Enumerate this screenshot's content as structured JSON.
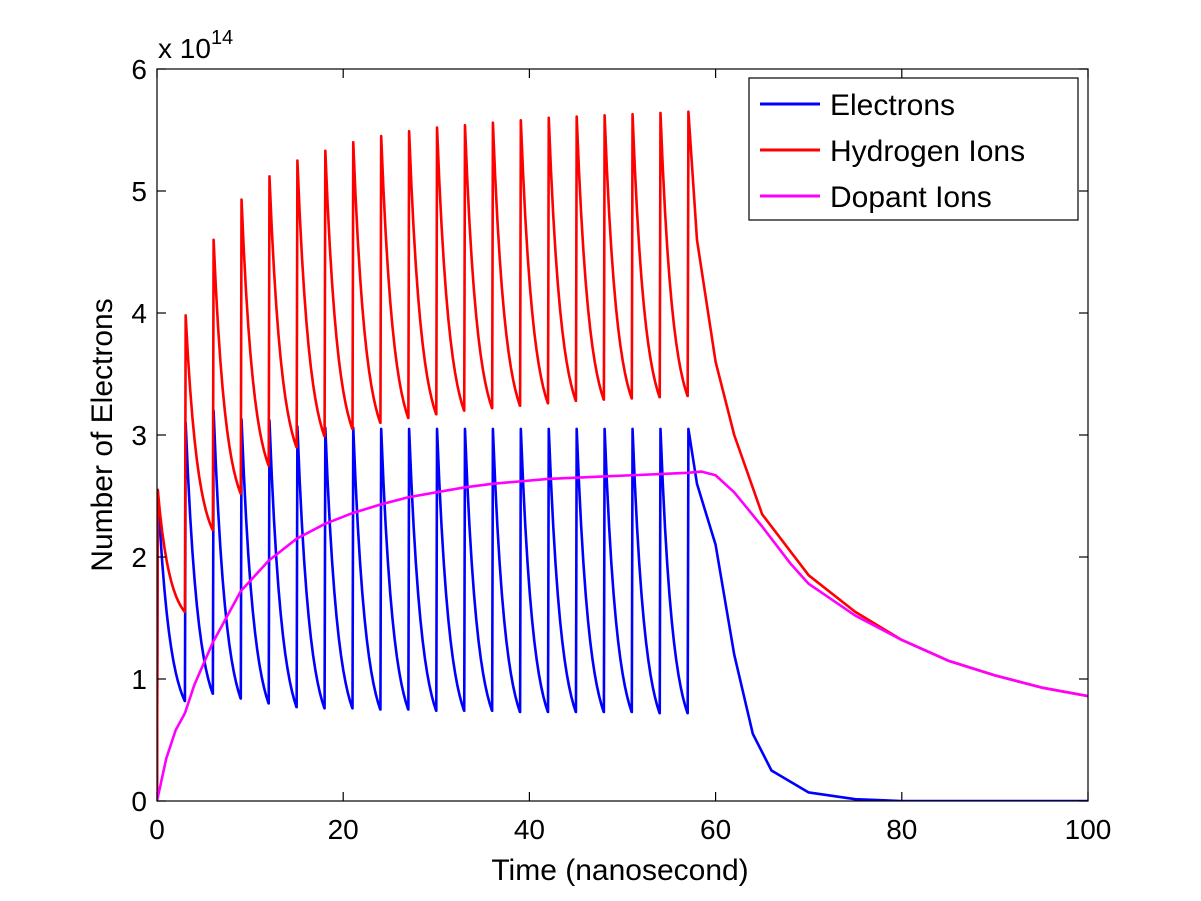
{
  "chart_data": {
    "type": "line",
    "xlabel": "Time (nanosecond)",
    "ylabel": "Number of Electrons",
    "xlim": [
      0,
      100
    ],
    "ylim": [
      0,
      6
    ],
    "y_multiplier": {
      "base": "x 10",
      "exponent": "14"
    },
    "xticks": [
      "0",
      "20",
      "40",
      "60",
      "80",
      "100"
    ],
    "yticks": [
      "0",
      "1",
      "2",
      "3",
      "4",
      "5",
      "6"
    ],
    "grid": false,
    "legend_position": "top-right",
    "pulses": {
      "period_ns": 3.0,
      "count": 20,
      "end_ns": 58
    },
    "series": [
      {
        "name": "Electrons",
        "color": "#0000ff",
        "peaks": [
          2.55,
          3.1,
          3.2,
          3.13,
          3.12,
          3.07,
          3.06,
          3.06,
          3.05,
          3.05,
          3.05,
          3.05,
          3.05,
          3.05,
          3.05,
          3.05,
          3.05,
          3.05,
          3.05,
          3.05
        ],
        "troughs": [
          0.82,
          0.88,
          0.84,
          0.8,
          0.77,
          0.76,
          0.76,
          0.75,
          0.75,
          0.74,
          0.74,
          0.74,
          0.73,
          0.73,
          0.73,
          0.73,
          0.73,
          0.72,
          0.72
        ],
        "tail": [
          [
            58,
            2.6
          ],
          [
            60,
            2.1
          ],
          [
            62,
            1.2
          ],
          [
            64,
            0.55
          ],
          [
            66,
            0.25
          ],
          [
            70,
            0.07
          ],
          [
            75,
            0.015
          ],
          [
            80,
            0.0
          ],
          [
            100,
            0.0
          ]
        ]
      },
      {
        "name": "Hydrogen Ions",
        "color": "#ff0000",
        "peaks": [
          2.55,
          3.98,
          4.6,
          4.93,
          5.12,
          5.25,
          5.33,
          5.4,
          5.45,
          5.49,
          5.52,
          5.54,
          5.56,
          5.58,
          5.6,
          5.61,
          5.62,
          5.63,
          5.64,
          5.65
        ],
        "troughs": [
          1.55,
          2.22,
          2.52,
          2.75,
          2.9,
          2.99,
          3.05,
          3.1,
          3.14,
          3.17,
          3.2,
          3.22,
          3.24,
          3.26,
          3.28,
          3.29,
          3.3,
          3.31,
          3.32
        ],
        "tail": [
          [
            58,
            4.6
          ],
          [
            60,
            3.6
          ],
          [
            62,
            3.0
          ],
          [
            65,
            2.35
          ],
          [
            70,
            1.85
          ],
          [
            75,
            1.55
          ],
          [
            80,
            1.32
          ],
          [
            85,
            1.15
          ],
          [
            90,
            1.03
          ],
          [
            95,
            0.93
          ],
          [
            100,
            0.86
          ]
        ]
      },
      {
        "name": "Dopant Ions",
        "color": "#ff00ff",
        "points": [
          [
            0,
            0.0
          ],
          [
            1,
            0.35
          ],
          [
            2,
            0.58
          ],
          [
            3,
            0.72
          ],
          [
            4,
            0.95
          ],
          [
            6,
            1.3
          ],
          [
            9,
            1.72
          ],
          [
            12,
            1.97
          ],
          [
            15,
            2.15
          ],
          [
            18,
            2.27
          ],
          [
            21,
            2.36
          ],
          [
            24,
            2.43
          ],
          [
            27,
            2.49
          ],
          [
            30,
            2.53
          ],
          [
            33,
            2.57
          ],
          [
            36,
            2.6
          ],
          [
            39,
            2.62
          ],
          [
            42,
            2.64
          ],
          [
            45,
            2.65
          ],
          [
            48,
            2.66
          ],
          [
            51,
            2.67
          ],
          [
            54,
            2.68
          ],
          [
            57,
            2.69
          ],
          [
            58.5,
            2.7
          ],
          [
            60,
            2.67
          ],
          [
            62,
            2.53
          ],
          [
            65,
            2.25
          ],
          [
            68,
            1.95
          ],
          [
            70,
            1.78
          ],
          [
            75,
            1.52
          ],
          [
            80,
            1.32
          ],
          [
            85,
            1.15
          ],
          [
            90,
            1.03
          ],
          [
            95,
            0.93
          ],
          [
            100,
            0.86
          ]
        ]
      }
    ]
  }
}
